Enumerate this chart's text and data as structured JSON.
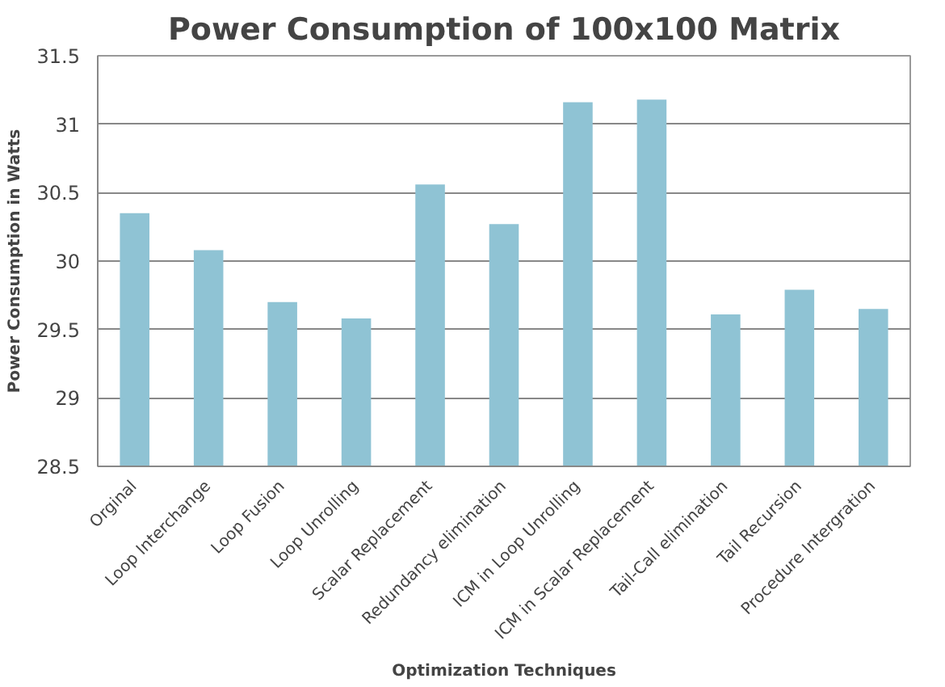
{
  "chart_data": {
    "type": "bar",
    "title": "Power Consumption of 100x100 Matrix",
    "xlabel": "Optimization Techniques",
    "ylabel": "Power Consumption in Watts",
    "categories": [
      "Orginal",
      "Loop Interchange",
      "Loop Fusion",
      "Loop Unrolling",
      "Scalar Replacement",
      "Redundancy elimination",
      "ICM in Loop Unrolling",
      "ICM in Scalar Replacement",
      "Tail-Call elimination",
      "Tail Recursion",
      "Procedure Intergration"
    ],
    "values": [
      30.35,
      30.08,
      29.7,
      29.58,
      30.56,
      30.27,
      31.16,
      31.18,
      29.61,
      29.79,
      29.65
    ],
    "color": "#8fc3d4",
    "ylim": [
      28.5,
      31.5
    ],
    "yticks": [
      {
        "value": 28.5,
        "label": "28.5"
      },
      {
        "value": 29,
        "label": "29"
      },
      {
        "value": 29.5,
        "label": "29.5"
      },
      {
        "value": 30,
        "label": "30"
      },
      {
        "value": 30.5,
        "label": "30.5"
      },
      {
        "value": 31,
        "label": "31"
      },
      {
        "value": 31.5,
        "label": "31.5"
      }
    ],
    "grid": "y"
  }
}
